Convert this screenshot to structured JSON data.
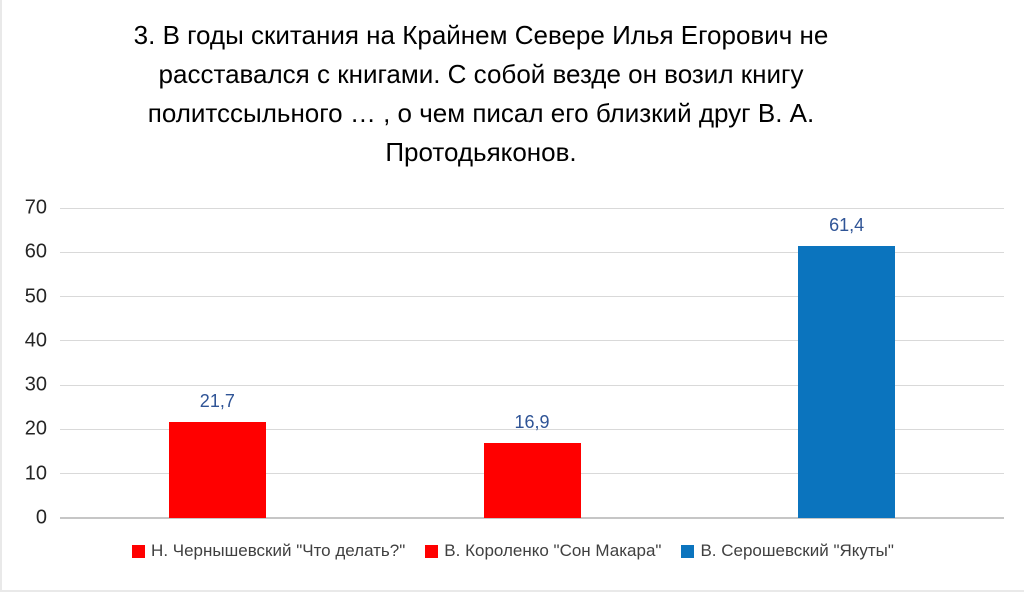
{
  "chart_data": {
    "type": "bar",
    "title": "3. В годы скитания на Крайнем Севере Илья Егорович не расставался с книгами. С собой везде он возил книгу политссыльного … , о чем писал его близкий друг В. А. Протодьяконов.",
    "title_lines": [
      "3. В годы скитания на Крайнем Севере Илья Егорович не",
      "расставался с книгами. С собой везде он возил книгу",
      "политссыльного … , о чем писал его близкий друг В. А.",
      "Протодьяконов."
    ],
    "categories": [
      "Н. Чернышевский \"Что делать?\"",
      "В. Короленко \"Сон Макара\"",
      "В. Серошевский \"Якуты\""
    ],
    "values": [
      21.7,
      16.9,
      61.4
    ],
    "value_labels": [
      "21,7",
      "16,9",
      "61,4"
    ],
    "bar_colors": [
      "#ff0000",
      "#ff0000",
      "#0b74be"
    ],
    "ylim": [
      0,
      70
    ],
    "yticks": [
      "0",
      "10",
      "20",
      "30",
      "40",
      "50",
      "60",
      "70"
    ],
    "grid": true,
    "legend_position": "bottom",
    "legend": [
      {
        "label": "Н. Чернышевский \"Что делать?\"",
        "color": "#ff0000"
      },
      {
        "label": "В. Короленко \"Сон Макара\"",
        "color": "#ff0000"
      },
      {
        "label": "В. Серошевский \"Якуты\"",
        "color": "#0b74be"
      }
    ],
    "xlabel": "",
    "ylabel": "",
    "data_label_color": "#2f5496",
    "gridline_color": "#d9d9d9",
    "axis_line_color": "#c6c6c6",
    "tick_label_color": "#262626",
    "legend_text_color": "#404040"
  }
}
